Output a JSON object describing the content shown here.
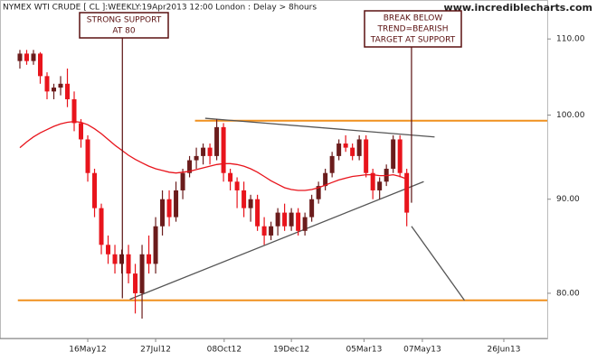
{
  "chart_data": {
    "type": "candlestick",
    "title": "NYMEX WTI CRUDE [ CL ]:WEEKLY:19Apr2013 12:00 London : Delay > 8hours",
    "source": "www.incrediblecharts.com",
    "log_scale": true,
    "up_color": "#6b1c1c",
    "down_color": "#e8141c",
    "x": [
      0,
      1,
      2,
      3,
      4,
      5,
      6,
      7,
      8,
      9,
      10,
      11,
      12,
      13,
      14,
      15,
      16,
      17,
      18,
      19,
      20,
      21,
      22,
      23,
      24,
      25,
      26,
      27,
      28,
      29,
      30,
      31,
      32,
      33,
      34,
      35,
      36,
      37,
      38,
      39,
      40,
      41,
      42,
      43,
      44,
      45,
      46,
      47,
      48,
      49,
      50,
      51,
      52,
      53,
      54,
      55,
      56,
      57
    ],
    "open": [
      107,
      108,
      107,
      108,
      105,
      103,
      103.5,
      104,
      102,
      99,
      97,
      93,
      89,
      85,
      84,
      83,
      84,
      82,
      80,
      84,
      83,
      87,
      90,
      88,
      91,
      93,
      94.5,
      95,
      96,
      95,
      98.5,
      93,
      92,
      91,
      89,
      90,
      87,
      86,
      87,
      88.5,
      87,
      88.5,
      86.5,
      88,
      90,
      91.5,
      93,
      95,
      96.5,
      96,
      95,
      97,
      93,
      91,
      92,
      93.5,
      97,
      93
    ],
    "high": [
      108.5,
      108.5,
      108.5,
      108.2,
      105.5,
      104,
      105,
      106,
      103,
      99.5,
      97.5,
      93.5,
      89.5,
      86,
      85,
      84.5,
      85,
      83,
      85,
      86,
      88,
      91,
      91,
      92,
      93.5,
      95,
      96,
      96.5,
      96.5,
      99.5,
      99,
      93.5,
      92.5,
      92,
      90.5,
      90.5,
      88,
      87.5,
      89,
      89.5,
      89,
      89,
      88.5,
      90.5,
      92,
      93.5,
      95.5,
      97,
      97.5,
      96.5,
      97.5,
      97.5,
      93.5,
      92.5,
      94,
      97.5,
      97.5,
      93.5
    ],
    "low": [
      106,
      106.5,
      106.5,
      104,
      102,
      102,
      102.5,
      101,
      98,
      96,
      92,
      88,
      84,
      83,
      82,
      82,
      81,
      78,
      77.5,
      82,
      82,
      86,
      87,
      87.5,
      90,
      92.5,
      93.5,
      94,
      94,
      94.5,
      92,
      91,
      89,
      88,
      87.5,
      86.5,
      85,
      85.5,
      86,
      86.5,
      86.5,
      86,
      86,
      87.5,
      89.5,
      91,
      92.5,
      94.5,
      95.5,
      94.5,
      94.5,
      92.5,
      90,
      90,
      91.5,
      93,
      92.5,
      87
    ],
    "close": [
      108,
      107,
      108,
      105,
      103,
      103.5,
      104,
      102,
      99,
      97,
      93,
      89,
      85,
      84,
      83,
      84,
      82,
      80,
      84,
      83,
      87,
      90,
      88,
      91,
      93,
      94.5,
      95,
      96,
      95,
      98.5,
      93,
      92,
      91,
      89,
      90,
      87,
      86,
      87,
      88.5,
      87,
      88.5,
      86.5,
      88,
      90,
      91.5,
      93,
      95,
      96.5,
      96,
      95,
      97,
      93,
      91,
      92,
      93.5,
      97,
      93,
      88.5
    ],
    "moving_average": {
      "color": "#e8141c",
      "values": [
        96,
        96.7,
        97.3,
        97.8,
        98.2,
        98.6,
        98.9,
        99.1,
        99.2,
        99.1,
        98.8,
        98.3,
        97.7,
        97,
        96.3,
        95.7,
        95.1,
        94.6,
        94.2,
        93.8,
        93.5,
        93.3,
        93.1,
        93,
        93.1,
        93.2,
        93.4,
        93.6,
        93.8,
        94,
        94.1,
        94.1,
        94,
        93.8,
        93.5,
        93.1,
        92.6,
        92.1,
        91.7,
        91.3,
        91.1,
        91,
        91,
        91.1,
        91.3,
        91.6,
        91.9,
        92.2,
        92.4,
        92.6,
        92.7,
        92.8,
        92.8,
        92.7,
        92.7,
        92.8,
        92.6,
        92.3
      ]
    },
    "lines": [
      {
        "color": "#f0901e",
        "x": [
          25.8,
          77.7
        ],
        "y": [
          99.3,
          99.3
        ]
      },
      {
        "color": "#f0901e",
        "x": [
          -0.3,
          77.7
        ],
        "y": [
          79.3,
          79.3
        ]
      },
      {
        "color": "#555555",
        "x": [
          16.2,
          59.5
        ],
        "y": [
          79.4,
          92
        ]
      },
      {
        "color": "#555555",
        "x": [
          27.3,
          61.1
        ],
        "y": [
          99.6,
          97.3
        ]
      },
      {
        "color": "#555555",
        "x": [
          57.7,
          65.5
        ],
        "y": [
          87,
          79.3
        ]
      }
    ],
    "annotations": [
      {
        "text": [
          "STRONG SUPPORT",
          "AT 80"
        ],
        "point": [
          15.1,
          79.5
        ]
      },
      {
        "text": [
          "BREAK BELOW",
          "TREND=BEARISH",
          "TARGET AT SUPPORT"
        ],
        "point": [
          57.7,
          89.6
        ]
      }
    ],
    "xlim": [
      -2.93,
      77.7
    ],
    "xticks": [
      {
        "value": 10,
        "label": "16May12"
      },
      {
        "value": 20,
        "label": "27Jul12"
      },
      {
        "value": 30.1,
        "label": "08Oct12"
      },
      {
        "value": 40,
        "label": "19Dec12"
      },
      {
        "value": 50.7,
        "label": "05Mar13"
      },
      {
        "value": 59.3,
        "label": "07May13"
      },
      {
        "value": 71.3,
        "label": "26Jun13"
      }
    ],
    "ylim": [
      75.6,
      115.5
    ],
    "yticks": [
      {
        "value": 80,
        "label": "80.00"
      },
      {
        "value": 90,
        "label": "90.00"
      },
      {
        "value": 100,
        "label": "100.00"
      },
      {
        "value": 110,
        "label": "110.00"
      }
    ]
  }
}
